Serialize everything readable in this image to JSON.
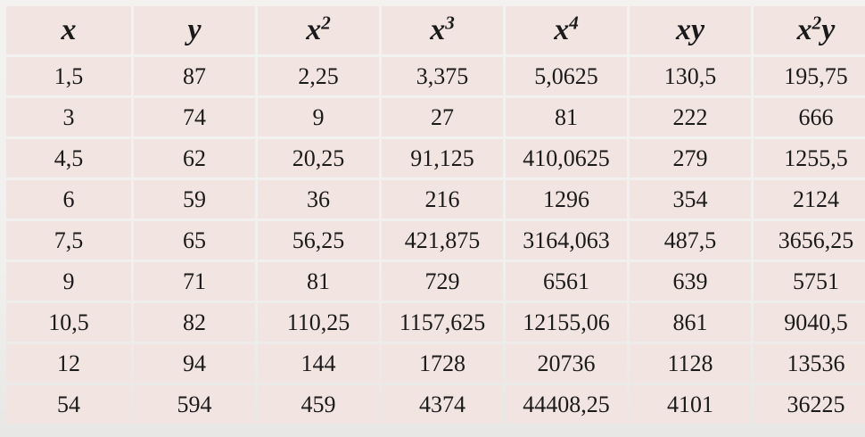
{
  "table": {
    "headers": [
      {
        "base": "x",
        "exp": "",
        "tail": ""
      },
      {
        "base": "y",
        "exp": "",
        "tail": ""
      },
      {
        "base": "x",
        "exp": "2",
        "tail": ""
      },
      {
        "base": "x",
        "exp": "3",
        "tail": ""
      },
      {
        "base": "x",
        "exp": "4",
        "tail": ""
      },
      {
        "base": "xy",
        "exp": "",
        "tail": ""
      },
      {
        "base": "x",
        "exp": "2",
        "tail": "y"
      }
    ],
    "rows": [
      [
        "1,5",
        "87",
        "2,25",
        "3,375",
        "5,0625",
        "130,5",
        "195,75"
      ],
      [
        "3",
        "74",
        "9",
        "27",
        "81",
        "222",
        "666"
      ],
      [
        "4,5",
        "62",
        "20,25",
        "91,125",
        "410,0625",
        "279",
        "1255,5"
      ],
      [
        "6",
        "59",
        "36",
        "216",
        "1296",
        "354",
        "2124"
      ],
      [
        "7,5",
        "65",
        "56,25",
        "421,875",
        "3164,063",
        "487,5",
        "3656,25"
      ],
      [
        "9",
        "71",
        "81",
        "729",
        "6561",
        "639",
        "5751"
      ],
      [
        "10,5",
        "82",
        "110,25",
        "1157,625",
        "12155,06",
        "861",
        "9040,5"
      ],
      [
        "12",
        "94",
        "144",
        "1728",
        "20736",
        "1128",
        "13536"
      ],
      [
        "54",
        "594",
        "459",
        "4374",
        "44408,25",
        "4101",
        "36225"
      ]
    ]
  }
}
